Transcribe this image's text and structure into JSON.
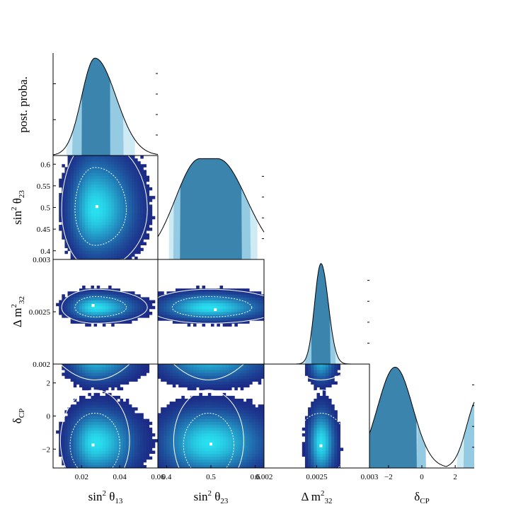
{
  "chart_data": {
    "type": "corner",
    "colors": {
      "hist_dark": "#0f1a6b",
      "hist_peak": "#28e0f0",
      "band_1sigma": "#3a84ae",
      "band_2sigma": "#94cbe3",
      "band_3sigma": "#cdeaf5",
      "contour": "#ffffff",
      "bestfit": "#ffffff"
    },
    "parameters": [
      {
        "key": "s13",
        "label": "sin",
        "label_sup": "2",
        "label_greek": "θ",
        "label_sub": "13",
        "range": [
          0.005,
          0.06
        ],
        "x_ticks": [
          "0.02",
          "0.04",
          "0.06"
        ],
        "x_tick_values": [
          0.02,
          0.04,
          0.06
        ],
        "posterior": {
          "mode": 0.027,
          "sigma_left": 0.007,
          "sigma_right": 0.011,
          "peak": 0.95,
          "band_1sigma": [
            0.02,
            0.035
          ],
          "band_2sigma": [
            0.015,
            0.042
          ],
          "band_3sigma": [
            0.012,
            0.048
          ]
        }
      },
      {
        "key": "s23",
        "label": "sin",
        "label_sup": "2",
        "label_greek": "θ",
        "label_sub": "23",
        "range": [
          0.38,
          0.62
        ],
        "x_ticks": [
          "0.4",
          "0.5",
          "0.6"
        ],
        "x_tick_values": [
          0.4,
          0.5,
          0.6
        ],
        "y_ticks": [
          "0.4",
          "0.45",
          "0.5",
          "0.55",
          "0.6"
        ],
        "y_tick_values": [
          0.4,
          0.45,
          0.5,
          0.55,
          0.6
        ],
        "posterior": {
          "mode": 0.495,
          "sigma_left": 0.055,
          "sigma_right": 0.065,
          "flat_top": 0.02,
          "peak": 0.97,
          "band_1sigma": [
            0.43,
            0.57
          ],
          "band_2sigma": [
            0.415,
            0.59
          ],
          "band_3sigma": [
            0.405,
            0.605
          ]
        }
      },
      {
        "key": "dm32",
        "label": "Δ m",
        "label_sup": "2",
        "label_greek": "",
        "label_sub": "32",
        "range": [
          0.002,
          0.003
        ],
        "x_ticks": [
          "0.002",
          "0.0025",
          "0.003"
        ],
        "x_tick_values": [
          0.002,
          0.0025,
          0.003
        ],
        "y_ticks": [
          "0.002",
          "0.0025",
          "0.003"
        ],
        "y_tick_values": [
          0.002,
          0.0025,
          0.003
        ],
        "posterior": {
          "mode": 0.00254,
          "sigma_left": 6e-05,
          "sigma_right": 7e-05,
          "peak": 0.96,
          "band_1sigma": [
            0.00245,
            0.00263
          ],
          "band_2sigma": [
            0.00239,
            0.00268
          ],
          "band_3sigma": [
            0.00236,
            0.00272
          ]
        }
      },
      {
        "key": "dcp",
        "label": "δ",
        "label_sup": "",
        "label_greek": "",
        "label_sub": "CP",
        "range": [
          -3.14,
          3.14
        ],
        "x_ticks": [
          "−2",
          "0",
          "2"
        ],
        "x_tick_values": [
          -2,
          0,
          2
        ],
        "y_ticks": [
          "−2",
          "0",
          "2"
        ],
        "y_tick_values": [
          -2,
          0,
          2
        ],
        "posterior": {
          "mode": -1.6,
          "peak": 0.97,
          "band_1sigma": [
            -3.14,
            -0.3
          ],
          "band_2sigma": [
            -0.3,
            0.25
          ],
          "band_3sigma": [
            2.1,
            2.5
          ],
          "band_2sigma_right": [
            2.5,
            3.14
          ]
        }
      }
    ],
    "diagonal_ylabel": "post. proba.",
    "best_fit": {
      "s13": 0.027,
      "s23": 0.502,
      "dm32": 0.00254,
      "dcp": -1.75
    },
    "joint_notes": {
      "s23_vs_s13_best": [
        0.028,
        0.502
      ],
      "dm32_vs_s13_best": [
        0.026,
        0.00256
      ],
      "dm32_vs_s23_best": [
        0.51,
        0.00252
      ],
      "dcp_vs_s13_best": [
        0.026,
        -1.75
      ],
      "dcp_vs_s23_best": [
        0.5,
        -1.7
      ],
      "dcp_vs_dm32_best": [
        0.00254,
        -1.8
      ]
    }
  }
}
